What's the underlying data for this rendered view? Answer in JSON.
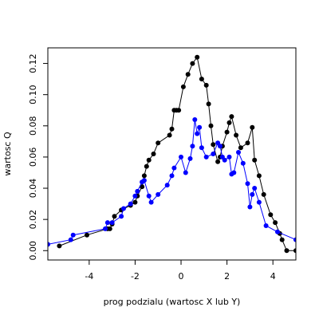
{
  "chart_data": {
    "type": "line",
    "title": "",
    "xlabel": "prog podzialu (wartosc X lub Y)",
    "ylabel": "wartosc Q",
    "xlim": [
      -5.8,
      5.0
    ],
    "ylim": [
      -0.006,
      0.13
    ],
    "x_ticks": [
      -4,
      -2,
      0,
      2,
      4
    ],
    "y_ticks": [
      0.0,
      0.02,
      0.04,
      0.06,
      0.08,
      0.1,
      0.12
    ],
    "x_tick_labels": [
      "-4",
      "-2",
      "0",
      "2",
      "4"
    ],
    "y_tick_labels": [
      "0.00",
      "0.02",
      "0.04",
      "0.06",
      "0.08",
      "0.10",
      "0.12"
    ],
    "grid": false,
    "series": [
      {
        "color": "#000000",
        "marker": "circle",
        "points": [
          [
            -5.3,
            0.003
          ],
          [
            -4.1,
            0.01
          ],
          [
            -3.2,
            0.014
          ],
          [
            -3.1,
            0.014
          ],
          [
            -3.0,
            0.017
          ],
          [
            -2.9,
            0.022
          ],
          [
            -2.6,
            0.026
          ],
          [
            -2.2,
            0.029
          ],
          [
            -2.0,
            0.031
          ],
          [
            -1.9,
            0.035
          ],
          [
            -1.7,
            0.041
          ],
          [
            -1.6,
            0.048
          ],
          [
            -1.5,
            0.054
          ],
          [
            -1.4,
            0.058
          ],
          [
            -1.2,
            0.062
          ],
          [
            -1.0,
            0.069
          ],
          [
            -0.5,
            0.074
          ],
          [
            -0.4,
            0.078
          ],
          [
            -0.3,
            0.09
          ],
          [
            -0.2,
            0.09
          ],
          [
            -0.1,
            0.09
          ],
          [
            0.1,
            0.105
          ],
          [
            0.3,
            0.113
          ],
          [
            0.5,
            0.12
          ],
          [
            0.7,
            0.124
          ],
          [
            0.9,
            0.11
          ],
          [
            1.1,
            0.106
          ],
          [
            1.2,
            0.094
          ],
          [
            1.3,
            0.08
          ],
          [
            1.4,
            0.068
          ],
          [
            1.6,
            0.057
          ],
          [
            1.7,
            0.06
          ],
          [
            1.8,
            0.067
          ],
          [
            2.0,
            0.076
          ],
          [
            2.1,
            0.082
          ],
          [
            2.2,
            0.086
          ],
          [
            2.4,
            0.074
          ],
          [
            2.6,
            0.066
          ],
          [
            2.9,
            0.069
          ],
          [
            3.1,
            0.079
          ],
          [
            3.2,
            0.058
          ],
          [
            3.4,
            0.048
          ],
          [
            3.6,
            0.036
          ],
          [
            3.9,
            0.023
          ],
          [
            4.1,
            0.018
          ],
          [
            4.3,
            0.011
          ],
          [
            4.4,
            0.007
          ],
          [
            4.6,
            0.0
          ],
          [
            5.0,
            0.0
          ]
        ]
      },
      {
        "color": "#0000ff",
        "marker": "circle",
        "points": [
          [
            -5.8,
            0.004
          ],
          [
            -4.8,
            0.007
          ],
          [
            -4.7,
            0.01
          ],
          [
            -3.3,
            0.014
          ],
          [
            -3.2,
            0.018
          ],
          [
            -3.0,
            0.018
          ],
          [
            -2.6,
            0.022
          ],
          [
            -2.5,
            0.027
          ],
          [
            -2.2,
            0.03
          ],
          [
            -2.0,
            0.035
          ],
          [
            -1.9,
            0.038
          ],
          [
            -1.7,
            0.044
          ],
          [
            -1.6,
            0.045
          ],
          [
            -1.4,
            0.035
          ],
          [
            -1.3,
            0.031
          ],
          [
            -1.0,
            0.036
          ],
          [
            -0.6,
            0.042
          ],
          [
            -0.4,
            0.048
          ],
          [
            -0.3,
            0.053
          ],
          [
            0.0,
            0.06
          ],
          [
            0.2,
            0.05
          ],
          [
            0.4,
            0.059
          ],
          [
            0.5,
            0.067
          ],
          [
            0.6,
            0.084
          ],
          [
            0.7,
            0.075
          ],
          [
            0.8,
            0.079
          ],
          [
            0.9,
            0.066
          ],
          [
            1.1,
            0.06
          ],
          [
            1.4,
            0.062
          ],
          [
            1.6,
            0.069
          ],
          [
            1.7,
            0.067
          ],
          [
            1.8,
            0.06
          ],
          [
            1.9,
            0.058
          ],
          [
            2.1,
            0.06
          ],
          [
            2.2,
            0.049
          ],
          [
            2.3,
            0.05
          ],
          [
            2.5,
            0.063
          ],
          [
            2.7,
            0.056
          ],
          [
            2.9,
            0.043
          ],
          [
            3.0,
            0.028
          ],
          [
            3.1,
            0.036
          ],
          [
            3.2,
            0.04
          ],
          [
            3.4,
            0.031
          ],
          [
            3.7,
            0.016
          ],
          [
            4.2,
            0.012
          ],
          [
            5.0,
            0.007
          ]
        ]
      }
    ]
  }
}
